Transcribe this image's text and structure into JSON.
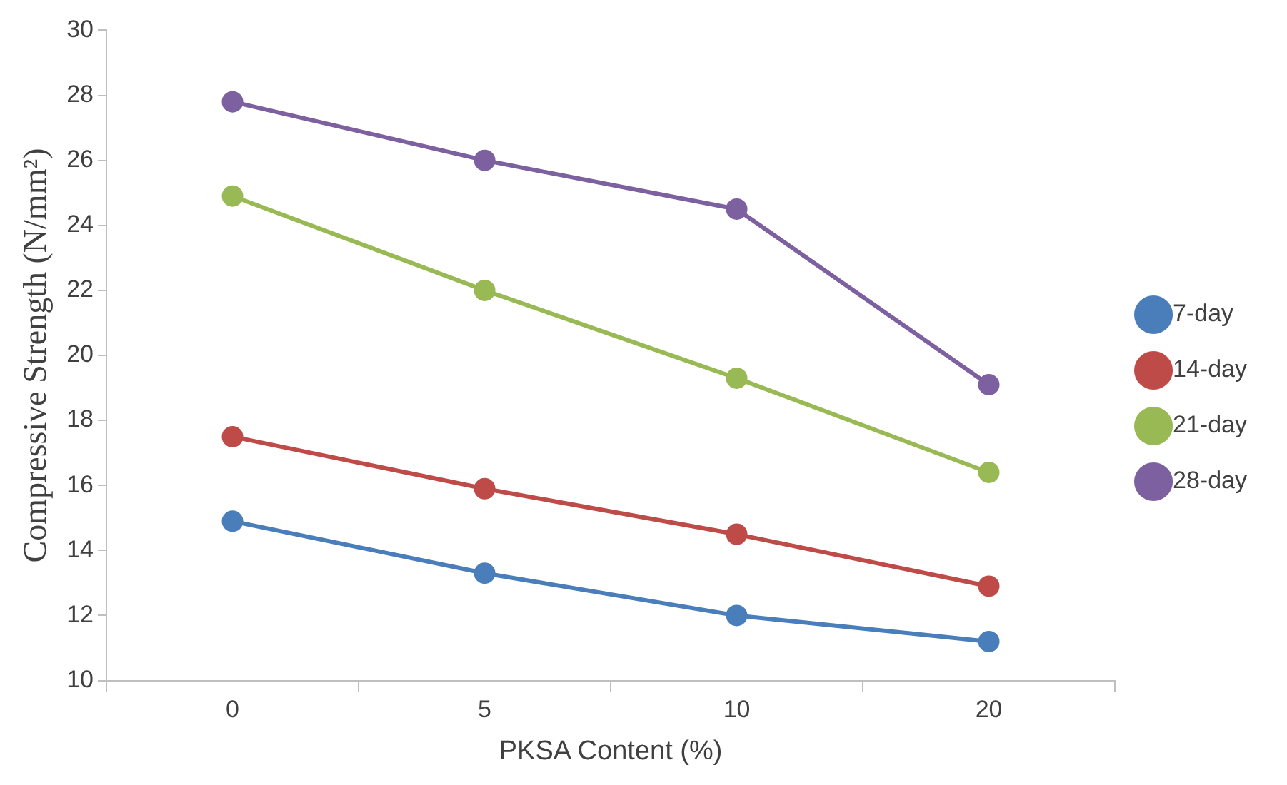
{
  "chart_data": {
    "type": "line",
    "xlabel": "PKSA Content (%)",
    "ylabel": "Compressive Strength (N/mm²)",
    "categories": [
      "0",
      "5",
      "10",
      "20"
    ],
    "series": [
      {
        "name": "7-day",
        "color": "#4a7ebb",
        "values": [
          14.9,
          13.3,
          12.0,
          11.2
        ]
      },
      {
        "name": "14-day",
        "color": "#be4b48",
        "values": [
          17.5,
          15.9,
          14.5,
          12.9
        ]
      },
      {
        "name": "21-day",
        "color": "#98b954",
        "values": [
          24.9,
          22.0,
          19.3,
          16.4
        ]
      },
      {
        "name": "28-day",
        "color": "#7d60a0",
        "values": [
          27.8,
          26.0,
          24.5,
          19.1
        ]
      }
    ],
    "ylim": [
      10,
      30
    ],
    "yticks": [
      10,
      12,
      14,
      16,
      18,
      20,
      22,
      24,
      26,
      28,
      30
    ],
    "grid": false,
    "legend": "right",
    "marker": "circle",
    "line_style": "solid"
  }
}
